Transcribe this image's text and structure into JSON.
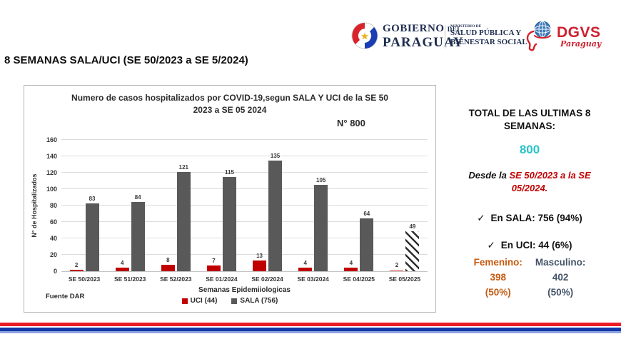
{
  "header": {
    "gobierno": {
      "word1": "GOBIERNO",
      "del": "DEL",
      "word2": "PARAGUAY"
    },
    "ministry": {
      "line0": "MINISTERIO DE",
      "line1": "SALUD PÚBLICA Y",
      "line2": "BIENESTAR SOCIAL"
    },
    "dgvs": {
      "acronym": "DGVS",
      "script": "Paraguay"
    }
  },
  "page_title": "8 SEMANAS SALA/UCI  (SE 50/2023 a SE 5/2024)",
  "chart": {
    "title_line1": "Numero de casos hospitalizados por COVID-19,segun SALA Y UCI de la SE 50",
    "title_line2": "2023 a SE 05 2024",
    "n_label": "N° 800",
    "source": "Fuente DAR"
  },
  "chart_data": {
    "type": "bar",
    "title": "Numero de casos hospitalizados por COVID-19,segun SALA Y UCI de la SE 50 2023 a SE 05 2024",
    "categories": [
      "SE 50/2023",
      "SE 51/2023",
      "SE 52/2023",
      "SE 01/2024",
      "SE 02/2024",
      "SE 03/2024",
      "SE 04/2025",
      "SE 05/2025"
    ],
    "series": [
      {
        "name": "UCI (44)",
        "color": "#c00000",
        "values": [
          2,
          4,
          8,
          7,
          13,
          4,
          4,
          2
        ]
      },
      {
        "name": "SALA (756)",
        "color": "#595959",
        "values": [
          83,
          84,
          121,
          115,
          135,
          105,
          64,
          49
        ]
      }
    ],
    "xlabel": "Semanas Epidemiiologicas",
    "ylabel": "N° de Hospitalizados",
    "ylim": [
      0,
      160
    ],
    "ytick_step": 20,
    "grid": true,
    "legend_position": "bottom",
    "last_group_estimated": true,
    "last_group_style": {
      "uci_color": "#f0a3a0",
      "sala_pattern": "diagonal-hatch"
    }
  },
  "side_panel": {
    "total_heading_line1": "TOTAL DE LAS ULTIMAS 8",
    "total_heading_line2": "SEMANAS:",
    "total_value": "800",
    "total_color": "#29c3ca",
    "desde_prefix": "Desde la ",
    "desde_range_line1": "SE 50/2023 a la SE",
    "desde_range_line2": "05/2024.",
    "check_glyph": "✓",
    "sala_line": "En SALA: 756 (94%)",
    "uci_line": "En UCI: 44 (6%)",
    "femenino": {
      "label": "Femenino:",
      "value": "398",
      "pct": "(50%)",
      "color": "#c55a11"
    },
    "masculino": {
      "label": "Masculino:",
      "value": "402",
      "pct": "(50%)",
      "color": "#44546a"
    }
  },
  "footer_stripes": {
    "red": "#ec1c24",
    "blue": "#1438a8",
    "light_blue": "#8fa3e0"
  }
}
